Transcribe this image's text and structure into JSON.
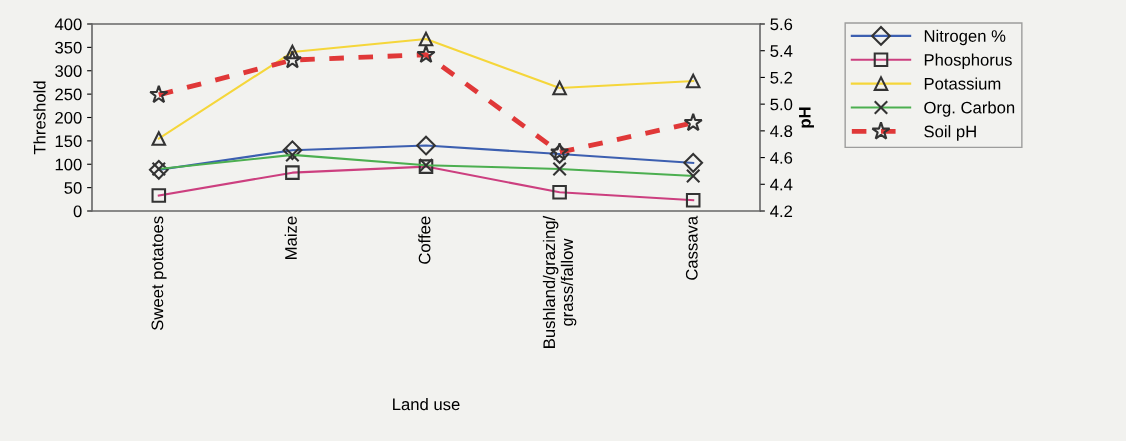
{
  "chart_data": {
    "type": "line",
    "xlabel": "Land use",
    "ylabel": "Threshold",
    "y2label": "pH",
    "categories": [
      "Sweet potatoes",
      "Maize",
      "Coffee",
      "Bushland/grazing/\ngrass/fallow",
      "Cassava"
    ],
    "series": [
      {
        "name": "Nitrogen %",
        "color": "#3c5fb0",
        "marker": "diamond",
        "line_style": "solid",
        "values": [
          88,
          130,
          140,
          122,
          103
        ]
      },
      {
        "name": "Phosphorus",
        "color": "#cc3f7f",
        "marker": "square",
        "line_style": "solid",
        "values": [
          33,
          82,
          95,
          40,
          23
        ]
      },
      {
        "name": "Potassium",
        "color": "#f5d63a",
        "marker": "triangle",
        "line_style": "solid",
        "values": [
          155,
          340,
          368,
          263,
          278
        ]
      },
      {
        "name": "Org. Carbon",
        "color": "#4caf50",
        "marker": "cross",
        "line_style": "solid",
        "values": [
          90,
          120,
          98,
          90,
          75
        ]
      },
      {
        "name": "Soil pH",
        "color": "#e03838",
        "marker": "star",
        "line_style": "dashed",
        "axis": "y2",
        "values": [
          5.07,
          5.33,
          5.37,
          4.64,
          4.86
        ]
      }
    ],
    "ylim": [
      0,
      400
    ],
    "yticks": [
      0,
      50,
      100,
      150,
      200,
      250,
      300,
      350,
      400
    ],
    "y2lim": [
      4.2,
      5.6
    ],
    "y2ticks": [
      {
        "value": 4.2,
        "label": "4.2"
      },
      {
        "value": 4.4,
        "label": "4.4"
      },
      {
        "value": 4.6,
        "label": "4.6"
      },
      {
        "value": 4.8,
        "label": "4.8"
      },
      {
        "value": 5.0,
        "label": "5.0"
      },
      {
        "value": 5.2,
        "label": "5.2"
      },
      {
        "value": 5.4,
        "label": "5.4"
      },
      {
        "value": 5.6,
        "label": "5.6"
      }
    ],
    "grid": false,
    "legend": "top right"
  }
}
